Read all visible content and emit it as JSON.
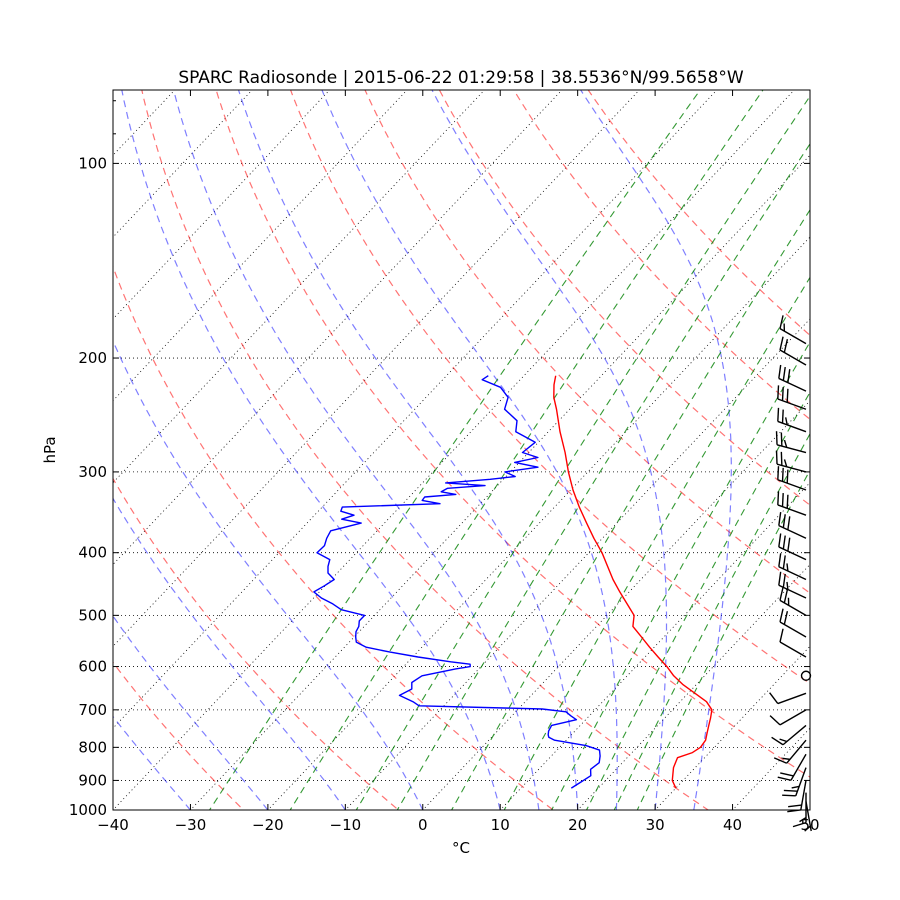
{
  "chart_data": {
    "type": "line",
    "title": "SPARC Radiosonde | 2015-06-22 01:29:58 | 38.5536°N/99.5658°W",
    "xlabel": "°C",
    "ylabel": "hPa",
    "xlim": [
      -40,
      50
    ],
    "ylim_hpa": [
      1000,
      77
    ],
    "skew_degC_per_log_unit": 79,
    "y_scale": "log",
    "grid": true,
    "x_ticks": [
      -40,
      -30,
      -20,
      -10,
      0,
      10,
      20,
      30,
      40,
      50
    ],
    "y_ticks": [
      100,
      200,
      300,
      400,
      500,
      600,
      700,
      800,
      900,
      1000
    ],
    "dry_adiabats_K": [
      250,
      270,
      290,
      310,
      330,
      350,
      370,
      390,
      410,
      430
    ],
    "moist_adiabats_degC": [
      -30,
      -20,
      -10,
      0,
      10,
      15,
      20,
      25,
      30,
      35
    ],
    "mixing_ratios_gkg": [
      0.4,
      1,
      2,
      3,
      5,
      8,
      12,
      16,
      20,
      24
    ],
    "series": [
      {
        "name": "Temperature",
        "color": "#ff0000",
        "p": [
          925,
          900,
          860,
          830,
          815,
          800,
          780,
          760,
          740,
          720,
          700,
          680,
          660,
          640,
          620,
          600,
          580,
          560,
          540,
          520,
          500,
          480,
          460,
          440,
          420,
          400,
          380,
          360,
          340,
          320,
          300,
          280,
          260,
          240,
          230,
          220,
          213
        ],
        "t": [
          30.0,
          28.6,
          27.2,
          26.5,
          27.8,
          28.2,
          28.0,
          27.3,
          26.6,
          25.9,
          25.1,
          23.4,
          20.9,
          18.3,
          16.0,
          14.0,
          11.7,
          9.4,
          7.1,
          4.7,
          3.5,
          1.2,
          -1.2,
          -3.6,
          -5.9,
          -8.3,
          -11.1,
          -13.9,
          -16.8,
          -19.7,
          -22.5,
          -25.3,
          -28.5,
          -31.7,
          -33.5,
          -35.0,
          -35.9
        ]
      },
      {
        "name": "Dewpoint",
        "color": "#0000ff",
        "p": [
          925,
          905,
          885,
          865,
          845,
          825,
          808,
          795,
          780,
          772,
          765,
          755,
          740,
          725,
          715,
          705,
          698,
          690,
          680,
          665,
          650,
          635,
          620,
          605,
          600,
          595,
          590,
          580,
          570,
          560,
          550,
          540,
          530,
          520,
          510,
          500,
          490,
          480,
          470,
          460,
          450,
          440,
          430,
          420,
          410,
          400,
          390,
          380,
          370,
          360,
          355,
          350,
          345,
          340,
          336,
          332,
          328,
          325,
          322,
          318,
          315,
          312,
          308,
          305,
          300,
          295,
          290,
          285,
          280,
          270,
          260,
          250,
          240,
          230,
          222,
          216,
          213
        ],
        "t": [
          16.5,
          17.0,
          17.5,
          16.7,
          17.0,
          16.3,
          15.5,
          13.2,
          8.5,
          7.4,
          7.0,
          6.6,
          6.3,
          8.8,
          7.6,
          6.5,
          3.1,
          -13.2,
          -14.5,
          -17.0,
          -16.2,
          -17.0,
          -16.5,
          -13.0,
          -11.4,
          -11.7,
          -14.5,
          -19.3,
          -23.5,
          -27.2,
          -29.1,
          -29.8,
          -30.4,
          -30.7,
          -31.3,
          -31.3,
          -35.0,
          -36.8,
          -39.0,
          -40.7,
          -40.1,
          -39.6,
          -41.2,
          -42.0,
          -42.6,
          -45.1,
          -45.0,
          -45.6,
          -46.0,
          -43.0,
          -46.0,
          -44.9,
          -47.1,
          -47.4,
          -35.2,
          -37.9,
          -38.0,
          -34.3,
          -36.5,
          -36.1,
          -31.6,
          -37.0,
          -31.7,
          -28.8,
          -30.7,
          -27.0,
          -30.6,
          -28.2,
          -30.8,
          -30.4,
          -34.2,
          -35.4,
          -38.4,
          -39.4,
          -41.6,
          -44.9,
          -44.6
        ]
      }
    ],
    "wind_barbs": [
      {
        "p": 970,
        "speed_kt": 5,
        "dir_deg": 170
      },
      {
        "p": 940,
        "speed_kt": 15,
        "dir_deg": 180
      },
      {
        "p": 900,
        "speed_kt": 20,
        "dir_deg": 190
      },
      {
        "p": 860,
        "speed_kt": 25,
        "dir_deg": 200
      },
      {
        "p": 820,
        "speed_kt": 20,
        "dir_deg": 210
      },
      {
        "p": 780,
        "speed_kt": 15,
        "dir_deg": 220
      },
      {
        "p": 740,
        "speed_kt": 15,
        "dir_deg": 230
      },
      {
        "p": 700,
        "speed_kt": 10,
        "dir_deg": 240
      },
      {
        "p": 660,
        "speed_kt": 10,
        "dir_deg": 250
      },
      {
        "p": 620,
        "speed_kt": 0,
        "dir_deg": 0
      },
      {
        "p": 580,
        "speed_kt": 10,
        "dir_deg": 300
      },
      {
        "p": 540,
        "speed_kt": 20,
        "dir_deg": 300
      },
      {
        "p": 500,
        "speed_kt": 25,
        "dir_deg": 300
      },
      {
        "p": 470,
        "speed_kt": 25,
        "dir_deg": 295
      },
      {
        "p": 440,
        "speed_kt": 25,
        "dir_deg": 295
      },
      {
        "p": 410,
        "speed_kt": 30,
        "dir_deg": 295
      },
      {
        "p": 380,
        "speed_kt": 30,
        "dir_deg": 295
      },
      {
        "p": 350,
        "speed_kt": 30,
        "dir_deg": 290
      },
      {
        "p": 320,
        "speed_kt": 30,
        "dir_deg": 290
      },
      {
        "p": 300,
        "speed_kt": 25,
        "dir_deg": 285
      },
      {
        "p": 280,
        "speed_kt": 25,
        "dir_deg": 285
      },
      {
        "p": 260,
        "speed_kt": 25,
        "dir_deg": 290
      },
      {
        "p": 240,
        "speed_kt": 30,
        "dir_deg": 290
      },
      {
        "p": 225,
        "speed_kt": 30,
        "dir_deg": 295
      },
      {
        "p": 205,
        "speed_kt": 20,
        "dir_deg": 300
      },
      {
        "p": 190,
        "speed_kt": 15,
        "dir_deg": 300
      }
    ]
  }
}
